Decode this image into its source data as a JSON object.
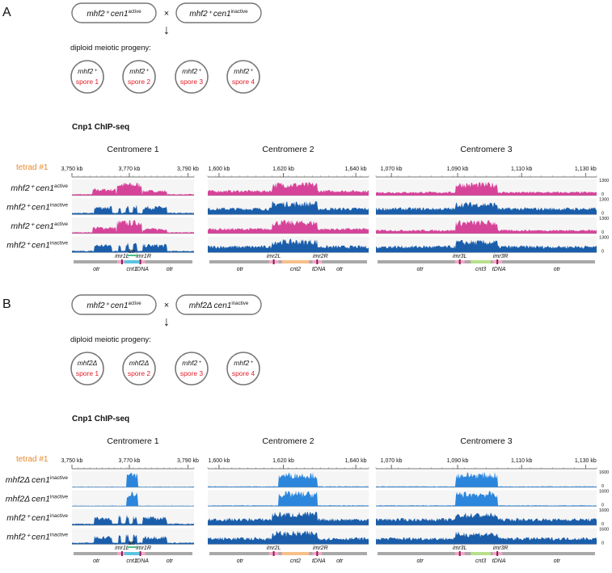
{
  "colors": {
    "active": "#d6449a",
    "inactive": "#1a5eab",
    "deletion": "#2b86dc",
    "spore_label": "#e0202a",
    "tetrad": "#e8892f",
    "locus_gray": "#a9a9a9",
    "track_bg": "#f5f5f5"
  },
  "panels": [
    {
      "letter": "A",
      "parents": [
        {
          "geno": "mhf2⁺",
          "cen": "cen1",
          "state": "active"
        },
        {
          "geno": "mhf2⁺",
          "cen": "cen1",
          "state": "inactive"
        }
      ],
      "cross_symbol": "×",
      "arrow": "↓",
      "progeny_title": "diploid meiotic progeny:",
      "spores": [
        {
          "geno": "mhf2⁺",
          "label": "spore 1"
        },
        {
          "geno": "mhf2⁺",
          "label": "spore 2"
        },
        {
          "geno": "mhf2⁺",
          "label": "spore 3"
        },
        {
          "geno": "mhf2⁺",
          "label": "spore 4"
        }
      ],
      "chip_title": "Cnp1 ChIP-seq",
      "tetrad_label": "tetrad #1",
      "scale_max": "1300",
      "scale_min": "0",
      "tracks": [
        {
          "geno": "mhf2⁺",
          "cen": "cen1",
          "state": "active",
          "kind": "active"
        },
        {
          "geno": "mhf2⁺",
          "cen": "cen1",
          "state": "inactive",
          "kind": "inactive"
        },
        {
          "geno": "mhf2⁺",
          "cen": "cen1",
          "state": "active",
          "kind": "active"
        },
        {
          "geno": "mhf2⁺",
          "cen": "cen1",
          "state": "inactive",
          "kind": "inactive"
        }
      ]
    },
    {
      "letter": "B",
      "parents": [
        {
          "geno": "mhf2⁺",
          "cen": "cen1",
          "state": "active"
        },
        {
          "geno": "mhf2Δ",
          "cen": "cen1",
          "state": "inactive"
        }
      ],
      "cross_symbol": "×",
      "arrow": "↓",
      "progeny_title": "diploid meiotic progeny:",
      "spores": [
        {
          "geno": "mhf2Δ",
          "label": "spore 1"
        },
        {
          "geno": "mhf2Δ",
          "label": "spore 2"
        },
        {
          "geno": "mhf2⁺",
          "label": "spore 3"
        },
        {
          "geno": "mhf2⁺",
          "label": "spore 4"
        }
      ],
      "chip_title": "Cnp1 ChIP-seq",
      "tetrad_label": "tetrad #1",
      "scale_max": "1600",
      "scale_min": "0",
      "tracks": [
        {
          "geno": "mhf2Δ",
          "cen": "cen1",
          "state": "inactive",
          "kind": "deletion"
        },
        {
          "geno": "mhf2Δ",
          "cen": "cen1",
          "state": "inactive",
          "kind": "deletion"
        },
        {
          "geno": "mhf2⁺",
          "cen": "cen1",
          "state": "inactive",
          "kind": "inactive"
        },
        {
          "geno": "mhf2⁺",
          "cen": "cen1",
          "state": "inactive",
          "kind": "inactive"
        }
      ]
    }
  ],
  "centromeres": [
    {
      "title": "Centromere 1",
      "ticks": [
        "3,750 kb",
        "3,770 kb",
        "3,790 kb"
      ],
      "features": {
        "imr_left": "imr1L",
        "imr_right": "imr1R",
        "tm": "tm",
        "cnt": "cnt1",
        "tdna": "tDNA",
        "otr": "otr"
      }
    },
    {
      "title": "Centromere 2",
      "ticks": [
        "1,600 kb",
        "1,620 kb",
        "1,640 kb"
      ],
      "features": {
        "imr_left": "imr2L",
        "imr_right": "imr2R",
        "cnt": "cnt2",
        "tdna": "tDNA",
        "otr": "otr"
      }
    },
    {
      "title": "Centromere 3",
      "ticks": [
        "1,070 kb",
        "1,090 kb",
        "1,110 kb",
        "1,130 kb"
      ],
      "features": {
        "imr_left": "imr3L",
        "imr_right": "imr3R",
        "cnt": "cnt3",
        "tdna": "tDNA",
        "otr": "otr"
      }
    }
  ]
}
